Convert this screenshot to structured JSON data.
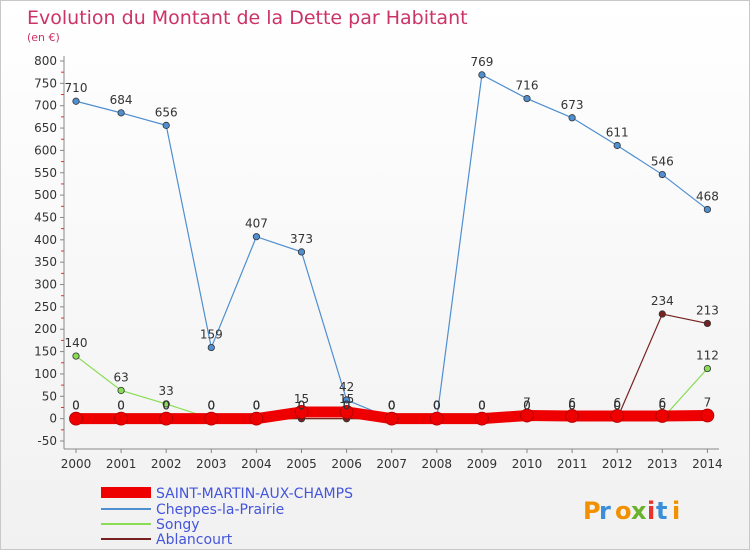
{
  "chart_data": {
    "type": "line",
    "title": "Evolution du Montant de la Dette par Habitant",
    "subtitle": "(en €)",
    "x": [
      "2000",
      "2001",
      "2002",
      "2003",
      "2004",
      "2005",
      "2006",
      "2007",
      "2008",
      "2009",
      "2010",
      "2011",
      "2012",
      "2013",
      "2014"
    ],
    "ylim": [
      -50,
      800
    ],
    "yticks": [
      -50,
      0,
      50,
      100,
      150,
      200,
      250,
      300,
      350,
      400,
      450,
      500,
      550,
      600,
      650,
      700,
      750,
      800
    ],
    "grid": false,
    "legend_position": "bottom-left",
    "series": [
      {
        "name": "SAINT-MARTIN-AUX-CHAMPS",
        "color": "#ee0000",
        "style": "thick",
        "values": [
          0,
          0,
          0,
          0,
          0,
          15,
          15,
          0,
          0,
          0,
          7,
          6,
          6,
          6,
          7
        ],
        "labels": [
          "0",
          "0",
          "0",
          "0",
          "0",
          "15",
          "15",
          "0",
          "0",
          "0",
          "7",
          "6",
          "6",
          "6",
          "7"
        ]
      },
      {
        "name": "Cheppes-la-Prairie",
        "color": "#4f8fcf",
        "style": "thin",
        "values": [
          710,
          684,
          656,
          159,
          407,
          373,
          42,
          0,
          0,
          769,
          716,
          673,
          611,
          546,
          468
        ],
        "labels": [
          "710",
          "684",
          "656",
          "159",
          "407",
          "373",
          "42",
          "0",
          "0",
          "769",
          "716",
          "673",
          "611",
          "546",
          "468"
        ]
      },
      {
        "name": "Songy",
        "color": "#88dd55",
        "style": "thin",
        "values": [
          140,
          63,
          33,
          0,
          0,
          0,
          0,
          0,
          0,
          0,
          0,
          0,
          0,
          0,
          112
        ],
        "labels": [
          "140",
          "63",
          "33",
          "0",
          "0",
          "0",
          "0",
          "0",
          "0",
          "0",
          "0",
          "0",
          "0",
          "0",
          "112"
        ]
      },
      {
        "name": "Ablancourt",
        "color": "#772222",
        "style": "thin",
        "values": [
          0,
          0,
          0,
          0,
          0,
          0,
          0,
          0,
          0,
          0,
          0,
          0,
          0,
          234,
          213
        ],
        "labels": [
          "0",
          "0",
          "0",
          "0",
          "0",
          "0",
          "0",
          "0",
          "0",
          "0",
          "0",
          "0",
          "0",
          "234",
          "213"
        ]
      }
    ]
  },
  "logo": {
    "text": "Proxiti",
    "letter_colors": [
      "#f29100",
      "#3a8fd8",
      "#f29100",
      "#6ab22c",
      "#e8332a",
      "#3a8fd8",
      "#f29100"
    ]
  }
}
